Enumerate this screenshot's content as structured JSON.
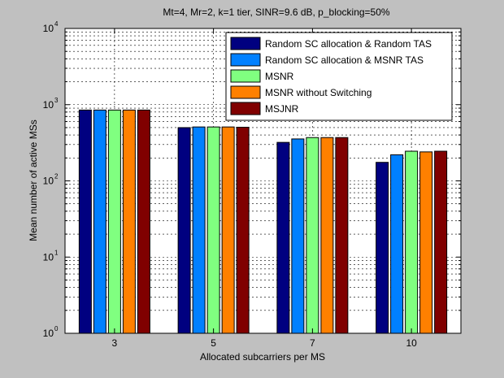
{
  "chart_data": {
    "type": "bar",
    "title": "Mt=4, Mr=2, k=1 tier, SINR=9.6 dB, p_blocking=50%",
    "xlabel": "Allocated subcarriers per MS",
    "ylabel": "Mean number of active MSs",
    "yscale": "log",
    "ylim": [
      1,
      10000
    ],
    "ytick_labels": [
      {
        "base": "10",
        "exp": "0"
      },
      {
        "base": "10",
        "exp": "1"
      },
      {
        "base": "10",
        "exp": "2"
      },
      {
        "base": "10",
        "exp": "3"
      },
      {
        "base": "10",
        "exp": "4"
      }
    ],
    "categories": [
      "3",
      "5",
      "7",
      "10"
    ],
    "grid": true,
    "legend_position": "top-right",
    "series": [
      {
        "name": "Random SC allocation & Random TAS",
        "color": "#000080",
        "values": [
          850,
          500,
          320,
          175
        ]
      },
      {
        "name": "Random SC allocation & MSNR TAS",
        "color": "#0080ff",
        "values": [
          850,
          510,
          355,
          220
        ]
      },
      {
        "name": "MSNR",
        "color": "#80ff80",
        "values": [
          850,
          510,
          370,
          245
        ]
      },
      {
        "name": "MSNR without Switching",
        "color": "#ff8000",
        "values": [
          850,
          510,
          370,
          240
        ]
      },
      {
        "name": "MSJNR",
        "color": "#800000",
        "values": [
          850,
          505,
          370,
          245
        ]
      }
    ]
  }
}
